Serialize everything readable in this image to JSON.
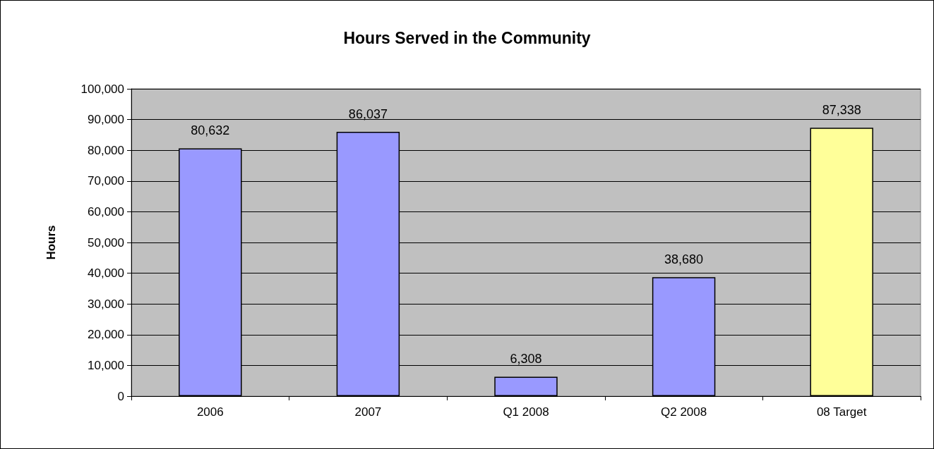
{
  "chart_data": {
    "type": "bar",
    "title": "Hours Served in the Community",
    "ylabel": "Hours",
    "categories": [
      "2006",
      "2007",
      "Q1 2008",
      "Q2 2008",
      "08 Target"
    ],
    "values": [
      80632,
      86037,
      6308,
      38680,
      87338
    ],
    "colors": [
      "#9999ff",
      "#9999ff",
      "#9999ff",
      "#9999ff",
      "#ffff99"
    ],
    "ylim": [
      0,
      100000
    ],
    "yticks": [
      {
        "value": 0,
        "label": "0"
      },
      {
        "value": 10000,
        "label": "10,000"
      },
      {
        "value": 20000,
        "label": "20,000"
      },
      {
        "value": 30000,
        "label": "30,000"
      },
      {
        "value": 40000,
        "label": "40,000"
      },
      {
        "value": 50000,
        "label": "50,000"
      },
      {
        "value": 60000,
        "label": "60,000"
      },
      {
        "value": 70000,
        "label": "70,000"
      },
      {
        "value": 80000,
        "label": "80,000"
      },
      {
        "value": 90000,
        "label": "90,000"
      },
      {
        "value": 100000,
        "label": "100,000"
      }
    ],
    "value_labels": [
      "80,632",
      "86,037",
      "6,308",
      "38,680",
      "87,338"
    ],
    "grid": "y"
  }
}
